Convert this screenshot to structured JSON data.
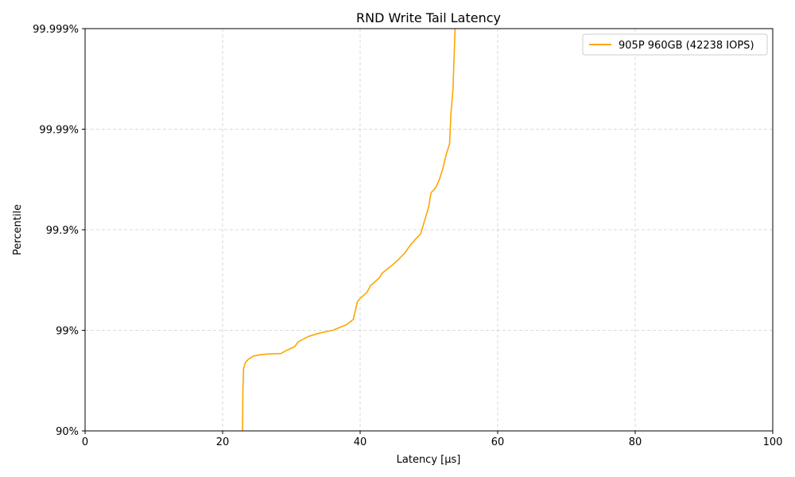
{
  "chart_data": {
    "type": "line",
    "title": "RND Write Tail Latency",
    "xlabel": "Latency [µs]",
    "ylabel": "Percentile",
    "xlim": [
      0,
      100
    ],
    "ylim": [
      90,
      99.999
    ],
    "y_scale": "log of (100 - percentile), nines",
    "grid": true,
    "legend_position": "top-right",
    "x_ticks": [
      {
        "value": 0,
        "label": "0"
      },
      {
        "value": 20,
        "label": "20"
      },
      {
        "value": 40,
        "label": "40"
      },
      {
        "value": 60,
        "label": "60"
      },
      {
        "value": 80,
        "label": "80"
      },
      {
        "value": 100,
        "label": "100"
      }
    ],
    "y_ticks": [
      {
        "value": 90,
        "label": "90%"
      },
      {
        "value": 99,
        "label": "99%"
      },
      {
        "value": 99.9,
        "label": "99.9%"
      },
      {
        "value": 99.99,
        "label": "99.99%"
      },
      {
        "value": 99.999,
        "label": "99.999%"
      }
    ],
    "series": [
      {
        "name": "905P 960GB (42238 IOPS)",
        "color": "#ffa500",
        "points": [
          [
            22.9,
            90.0
          ],
          [
            22.95,
            96.0
          ],
          [
            23.0,
            97.0
          ],
          [
            23.05,
            97.6
          ],
          [
            23.3,
            97.9
          ],
          [
            23.7,
            98.05
          ],
          [
            24.5,
            98.2
          ],
          [
            25.5,
            98.25
          ],
          [
            26.5,
            98.28
          ],
          [
            28.5,
            98.3
          ],
          [
            29.0,
            98.38
          ],
          [
            30.5,
            98.55
          ],
          [
            31.0,
            98.7
          ],
          [
            32.5,
            98.85
          ],
          [
            34.0,
            98.93
          ],
          [
            36.0,
            99.0
          ],
          [
            38.0,
            99.12
          ],
          [
            39.0,
            99.22
          ],
          [
            39.6,
            99.48
          ],
          [
            40.0,
            99.52
          ],
          [
            41.0,
            99.58
          ],
          [
            41.5,
            99.64
          ],
          [
            42.8,
            99.7
          ],
          [
            43.2,
            99.73
          ],
          [
            44.5,
            99.77
          ],
          [
            45.5,
            99.8
          ],
          [
            46.5,
            99.83
          ],
          [
            47.2,
            99.855
          ],
          [
            48.0,
            99.875
          ],
          [
            48.8,
            99.89
          ],
          [
            49.4,
            99.92
          ],
          [
            50.0,
            99.942
          ],
          [
            50.3,
            99.957
          ],
          [
            51.0,
            99.962
          ],
          [
            51.5,
            99.968
          ],
          [
            52.0,
            99.975
          ],
          [
            52.5,
            99.982
          ],
          [
            53.0,
            99.986
          ],
          [
            53.2,
            99.993
          ],
          [
            53.5,
            99.996
          ],
          [
            53.8,
            99.999
          ]
        ]
      }
    ]
  }
}
